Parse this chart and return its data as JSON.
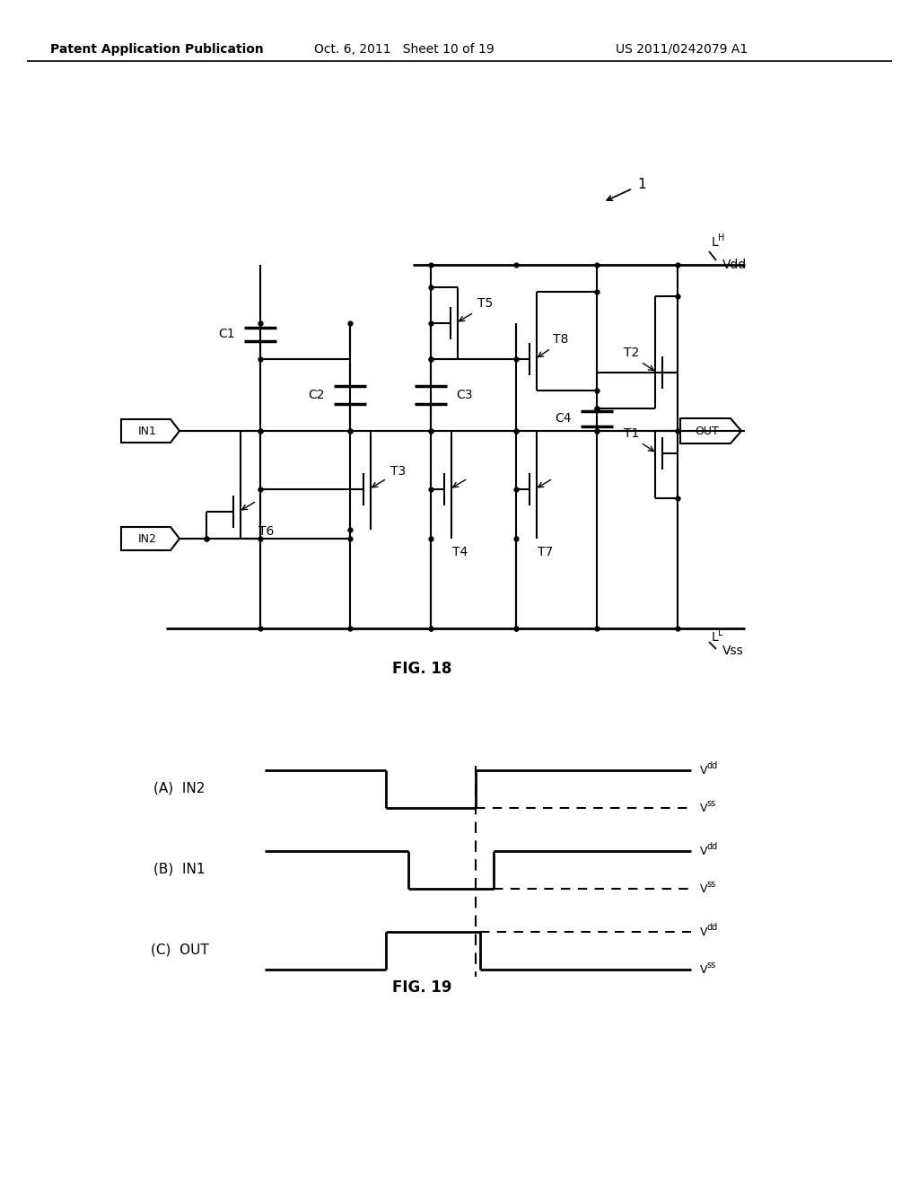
{
  "bg_color": "#ffffff",
  "header_left": "Patent Application Publication",
  "header_mid": "Oct. 6, 2011   Sheet 10 of 19",
  "header_right": "US 2011/0242079 A1",
  "fig18_label": "FIG. 18",
  "fig19_label": "FIG. 19",
  "label_1": "1",
  "label_LH": "L",
  "label_LH_sub": "H",
  "label_LL": "L",
  "label_LL_sub": "L",
  "label_Vdd": "Vdd",
  "label_Vss": "Vss",
  "label_T1": "T1",
  "label_T2": "T2",
  "label_T3": "T3",
  "label_T4": "T4",
  "label_T5": "T5",
  "label_T6": "T6",
  "label_T7": "T7",
  "label_T8": "T8",
  "label_C1": "C1",
  "label_C2": "C2",
  "label_C3": "C3",
  "label_C4": "C4",
  "label_IN1": "IN1",
  "label_IN2": "IN2",
  "label_OUT": "OUT",
  "wf_label_A": "(A)  IN2",
  "wf_label_B": "(B)  IN1",
  "wf_label_C": "(C)  OUT"
}
